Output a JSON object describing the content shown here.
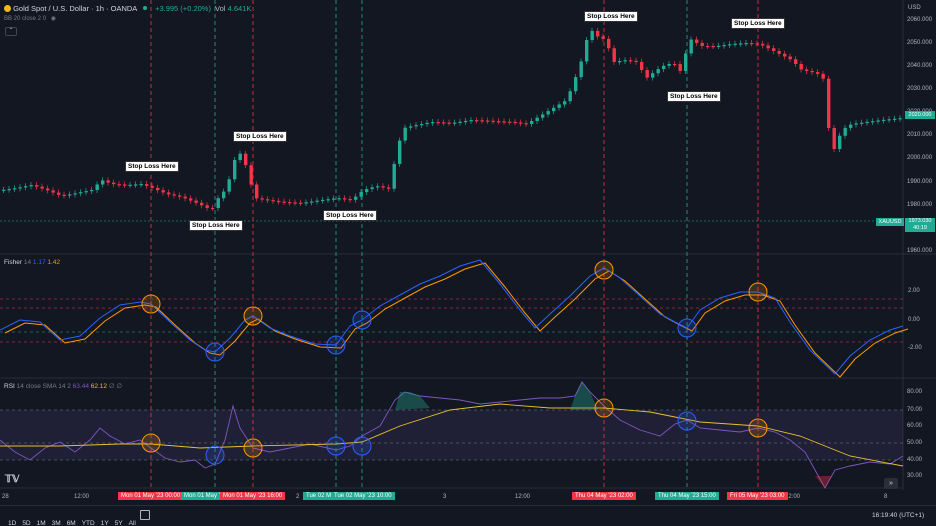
{
  "header": {
    "symbol_title": "Gold Spot / U.S. Dollar · 1h · OANDA",
    "change": "+3.995 (+0.20%)",
    "volume": "4.641K",
    "ma_legend": "BB 20 close 2 0"
  },
  "price_axis": {
    "currency": "USD",
    "ticks": [
      "2060.000",
      "2050.000",
      "2040.000",
      "2030.000",
      "2020.000",
      "2010.000",
      "2000.000",
      "1990.000",
      "1980.000",
      "1970.000",
      "1960.000"
    ],
    "current_price": "2020.000",
    "symbol_tag": "XAUUSD",
    "symbol_price": "1973.030",
    "symbol_timer": "40:19"
  },
  "fisher": {
    "legend_name": "Fisher",
    "legend_len": "14",
    "legend_val1": "1.17",
    "legend_val2": "1.42",
    "ticks": [
      "2.00",
      "0.00",
      "-2.00"
    ]
  },
  "rsi": {
    "legend_name": "RSI",
    "legend_params": "14 close SMA 14 2",
    "legend_val1": "63.44",
    "legend_val2": "62.12",
    "legend_extra": "∅ ∅",
    "ticks": [
      "80.00",
      "70.00",
      "60.00",
      "50.00",
      "40.00",
      "30.00"
    ]
  },
  "stop_loss_label": "Stop Loss Here",
  "time_axis": {
    "ticks": [
      "28",
      "12:00",
      "2",
      "3",
      "12:00",
      "12:00",
      "8"
    ],
    "tags": [
      {
        "text": "Mon 01 May '23   00:00",
        "color": "#f23645"
      },
      {
        "text": "Mon 01 May '2",
        "color": "#22ab94"
      },
      {
        "text": "Mon 01 May '23   16:00",
        "color": "#f23645"
      },
      {
        "text": "Tue 02 M",
        "color": "#22ab94"
      },
      {
        "text": "Tue 02 May '23   10:00",
        "color": "#22ab94"
      },
      {
        "text": "Thu 04 May '23   02:00",
        "color": "#f23645"
      },
      {
        "text": "Thu 04 May '23   15:00",
        "color": "#22ab94"
      },
      {
        "text": "Fri 05 May '23   03:00",
        "color": "#f23645"
      }
    ]
  },
  "toolbar": {
    "timeframes": [
      "1D",
      "5D",
      "1M",
      "3M",
      "6M",
      "YTD",
      "1Y",
      "5Y",
      "All"
    ],
    "clock": "16:19:40 (UTC+1)"
  },
  "colors": {
    "bull": "#22ab94",
    "bear": "#f23645",
    "fisher_line": "#2962ff",
    "fisher_trigger": "#ff9800",
    "rsi_line": "#7e57c2",
    "rsi_ma": "#e6c229"
  }
}
